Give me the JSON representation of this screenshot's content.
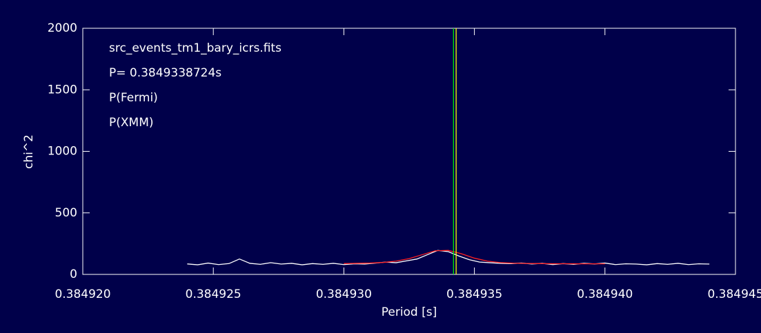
{
  "chart_data": {
    "type": "line",
    "xlabel": "Period [s]",
    "ylabel": "chi^2",
    "xlim": [
      0.38492,
      0.384945
    ],
    "ylim": [
      0,
      2000
    ],
    "xticks": [
      {
        "value": 0.38492,
        "label": "0.384920"
      },
      {
        "value": 0.384925,
        "label": "0.384925"
      },
      {
        "value": 0.38493,
        "label": "0.384930"
      },
      {
        "value": 0.384935,
        "label": "0.384935"
      },
      {
        "value": 0.38494,
        "label": "0.384940"
      },
      {
        "value": 0.384945,
        "label": "0.384945"
      }
    ],
    "yticks": [
      0,
      500,
      1000,
      1500,
      2000
    ],
    "series": [
      {
        "name": "src_events_tm1_bary_icrs.fits",
        "color": "#ffffff",
        "x": [
          0.384924,
          0.3849244,
          0.3849248,
          0.3849252,
          0.3849256,
          0.384926,
          0.3849264,
          0.3849268,
          0.3849272,
          0.3849276,
          0.384928,
          0.3849284,
          0.3849288,
          0.3849292,
          0.3849296,
          0.38493,
          0.3849304,
          0.3849308,
          0.3849312,
          0.3849316,
          0.384932,
          0.3849324,
          0.3849328,
          0.3849332,
          0.3849336,
          0.384934,
          0.3849344,
          0.3849348,
          0.3849352,
          0.3849356,
          0.384936,
          0.3849364,
          0.3849368,
          0.3849372,
          0.3849376,
          0.384938,
          0.3849384,
          0.3849388,
          0.3849392,
          0.3849396,
          0.38494,
          0.3849404,
          0.3849408,
          0.3849412,
          0.3849416,
          0.384942,
          0.3849424,
          0.3849428,
          0.3849432,
          0.3849436,
          0.384944
        ],
        "values": [
          85,
          78,
          92,
          80,
          88,
          125,
          90,
          82,
          95,
          84,
          90,
          78,
          88,
          82,
          90,
          80,
          86,
          84,
          92,
          100,
          95,
          110,
          125,
          160,
          195,
          185,
          150,
          120,
          100,
          95,
          90,
          88,
          92,
          85,
          90,
          80,
          88,
          82,
          90,
          85,
          92,
          80,
          86,
          84,
          78,
          88,
          82,
          90,
          80,
          86,
          84
        ]
      },
      {
        "name": "P= 0.3849338724s",
        "color": "#ff2020",
        "x": [
          0.38493,
          0.3849305,
          0.384931,
          0.3849315,
          0.384932,
          0.3849325,
          0.384933,
          0.3849335,
          0.384934,
          0.3849345,
          0.384935,
          0.3849355,
          0.384936,
          0.3849365,
          0.384937,
          0.3849375,
          0.384938,
          0.3849385,
          0.384939,
          0.3849395,
          0.38494
        ],
        "values": [
          88,
          90,
          92,
          97,
          108,
          128,
          160,
          192,
          195,
          168,
          132,
          108,
          96,
          91,
          89,
          88,
          87,
          87,
          86,
          86,
          86
        ]
      }
    ],
    "reference_lines": [
      {
        "name": "P(Fermi)",
        "color": "#00ee00",
        "value": 0.3849342
      },
      {
        "name": "P(XMM)",
        "color": "#ffff00",
        "value": 0.3849343
      }
    ]
  }
}
